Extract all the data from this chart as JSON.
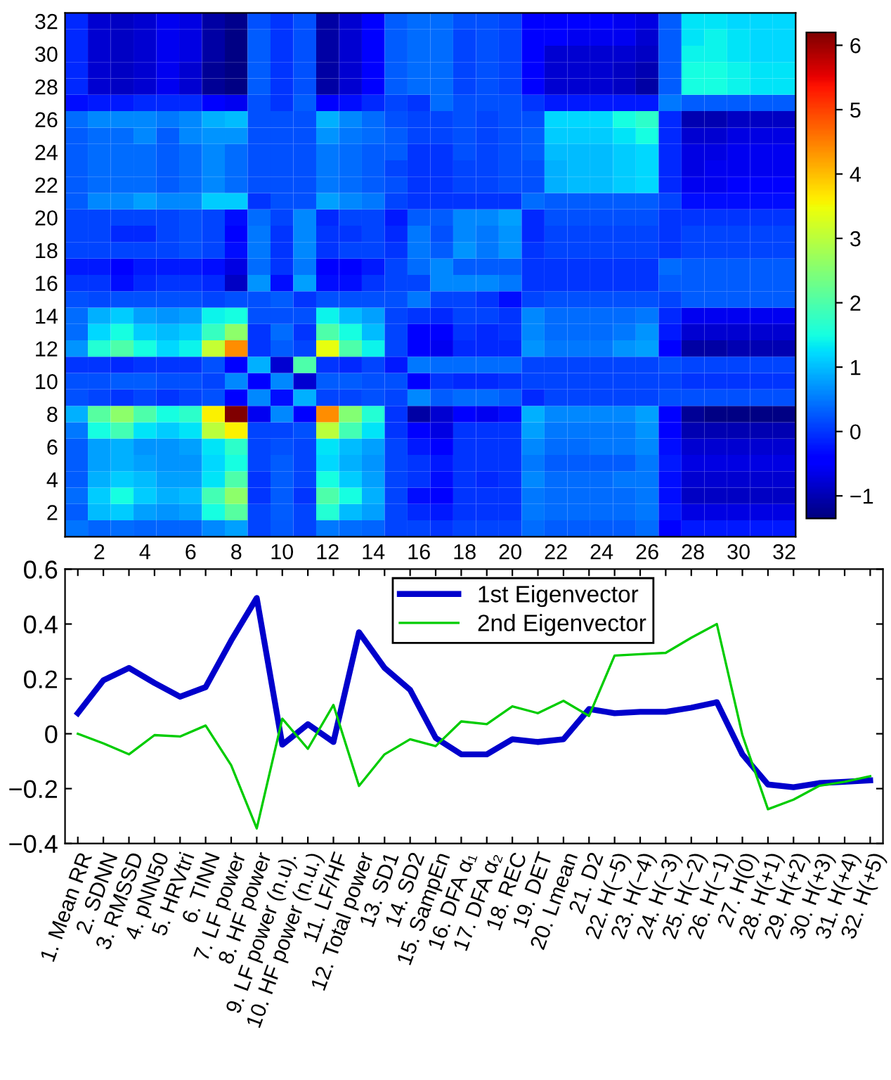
{
  "chart_data": [
    {
      "type": "heatmap",
      "categories": [
        null,
        "2",
        null,
        "4",
        null,
        "6",
        null,
        "8",
        null,
        "10",
        null,
        "12",
        null,
        "14",
        null,
        "16",
        null,
        "18",
        null,
        "20",
        null,
        "22",
        null,
        "24",
        null,
        "26",
        null,
        "28",
        null,
        "30",
        null,
        "32"
      ],
      "y_categories": [
        "32",
        null,
        "30",
        null,
        "28",
        null,
        "26",
        null,
        "24",
        null,
        "22",
        null,
        "20",
        null,
        "18",
        null,
        "16",
        null,
        "14",
        null,
        "12",
        null,
        "10",
        null,
        "8",
        null,
        "6",
        null,
        "4",
        null,
        "2",
        null
      ],
      "cells": [
        [
          -0.1,
          -0.8,
          -0.9,
          -0.8,
          -0.6,
          -0.7,
          -1.1,
          -1.25,
          0.2,
          0.0,
          0.2,
          -1.1,
          -0.8,
          -0.5,
          0.3,
          0.4,
          0.4,
          0.2,
          0.2,
          0.1,
          -0.4,
          -0.4,
          -0.4,
          -0.4,
          -0.6,
          -0.7,
          0.3,
          1.3,
          1.3,
          1.2,
          1.2,
          1.2
        ],
        [
          -0.1,
          -0.8,
          -0.9,
          -0.8,
          -0.6,
          -0.7,
          -1.1,
          -1.3,
          0.3,
          0.0,
          0.2,
          -1.1,
          -0.8,
          -0.5,
          0.3,
          0.4,
          0.4,
          0.1,
          0.2,
          0.1,
          -0.4,
          -0.5,
          -0.6,
          -0.6,
          -0.6,
          -0.8,
          0.3,
          1.3,
          1.4,
          1.3,
          1.2,
          1.2
        ],
        [
          -0.1,
          -0.8,
          -0.9,
          -0.8,
          -0.6,
          -0.7,
          -1.1,
          -1.3,
          0.3,
          0.0,
          0.2,
          -1.1,
          -0.8,
          -0.5,
          0.3,
          0.4,
          0.4,
          0.1,
          0.2,
          0.1,
          -0.4,
          -0.8,
          -0.8,
          -0.8,
          -0.8,
          -0.9,
          0.3,
          1.4,
          1.4,
          1.3,
          1.2,
          1.2
        ],
        [
          -0.1,
          -0.8,
          -0.9,
          -0.8,
          -0.6,
          -0.8,
          -1.2,
          -1.3,
          0.3,
          0.0,
          0.2,
          -1.1,
          -0.8,
          -0.5,
          0.3,
          0.4,
          0.4,
          0.1,
          0.2,
          0.1,
          -0.4,
          -0.8,
          -0.8,
          -0.8,
          -0.9,
          -1.0,
          0.3,
          1.5,
          1.5,
          1.4,
          1.3,
          1.3
        ],
        [
          -0.1,
          -0.8,
          -0.9,
          -0.8,
          -0.6,
          -0.8,
          -1.2,
          -1.3,
          0.3,
          0.0,
          0.2,
          -1.1,
          -0.8,
          -0.5,
          0.3,
          0.4,
          0.4,
          0.1,
          0.2,
          0.1,
          -0.4,
          -0.8,
          -0.8,
          -0.8,
          -0.9,
          -1.1,
          0.3,
          1.5,
          1.5,
          1.4,
          1.3,
          1.3
        ],
        [
          -0.3,
          -0.2,
          -0.2,
          -0.1,
          -0.1,
          -0.1,
          -0.4,
          -0.6,
          0.2,
          0.0,
          0.3,
          -0.5,
          -0.3,
          -0.1,
          0.1,
          0.0,
          0.4,
          0.2,
          0.2,
          0.2,
          0.0,
          -0.2,
          -0.2,
          -0.2,
          -0.2,
          -0.2,
          0.5,
          0.3,
          0.3,
          0.3,
          0.3,
          0.3
        ],
        [
          0.4,
          0.6,
          0.6,
          0.6,
          0.5,
          0.6,
          0.9,
          1.0,
          0.2,
          0.2,
          0.2,
          0.9,
          0.6,
          0.4,
          0.2,
          0.1,
          0.1,
          0.2,
          0.1,
          0.2,
          0.2,
          1.2,
          1.2,
          1.2,
          1.5,
          1.7,
          -0.1,
          -1.0,
          -1.0,
          -0.9,
          -0.9,
          -0.9
        ],
        [
          0.3,
          0.4,
          0.4,
          0.6,
          0.3,
          0.6,
          0.7,
          0.7,
          0.2,
          0.2,
          0.2,
          0.7,
          0.5,
          0.4,
          0.3,
          0.1,
          0.1,
          0.2,
          0.1,
          0.2,
          0.3,
          1.1,
          1.1,
          1.1,
          1.3,
          1.5,
          -0.1,
          -0.8,
          -0.8,
          -0.7,
          -0.7,
          -0.7
        ],
        [
          0.3,
          0.4,
          0.4,
          0.4,
          0.3,
          0.4,
          0.6,
          0.4,
          0.2,
          0.2,
          0.2,
          0.5,
          0.4,
          0.3,
          0.3,
          0.0,
          0.0,
          0.2,
          0.1,
          0.2,
          0.3,
          1.0,
          1.0,
          1.0,
          1.1,
          1.2,
          -0.1,
          -0.7,
          -0.7,
          -0.6,
          -0.6,
          -0.6
        ],
        [
          0.3,
          0.4,
          0.4,
          0.4,
          0.3,
          0.4,
          0.6,
          0.4,
          0.2,
          0.2,
          0.2,
          0.5,
          0.4,
          0.3,
          0.1,
          0.0,
          0.0,
          0.1,
          0.1,
          0.2,
          0.2,
          0.9,
          1.0,
          1.0,
          1.1,
          1.2,
          -0.1,
          -0.7,
          -0.6,
          -0.6,
          -0.6,
          -0.6
        ],
        [
          0.3,
          0.4,
          0.4,
          0.4,
          0.3,
          0.4,
          0.6,
          0.4,
          0.2,
          0.2,
          0.2,
          0.5,
          0.4,
          0.3,
          0.2,
          0.0,
          0.0,
          0.1,
          0.1,
          0.2,
          0.2,
          0.9,
          1.0,
          1.0,
          1.1,
          1.2,
          -0.1,
          -0.6,
          -0.6,
          -0.5,
          -0.5,
          -0.5
        ],
        [
          0.3,
          0.6,
          0.6,
          0.8,
          0.6,
          0.6,
          1.1,
          1.1,
          0.0,
          0.2,
          0.2,
          0.8,
          0.6,
          0.5,
          0.1,
          0.0,
          0.0,
          0.0,
          0.0,
          0.0,
          0.4,
          0.3,
          0.3,
          0.3,
          0.3,
          0.3,
          0.1,
          -0.3,
          -0.3,
          -0.3,
          -0.3,
          -0.3
        ],
        [
          0.1,
          0.1,
          0.1,
          0.1,
          0.1,
          0.2,
          0.1,
          -0.3,
          0.4,
          0.1,
          0.6,
          -0.1,
          0.1,
          0.1,
          -0.2,
          0.3,
          0.3,
          0.6,
          0.6,
          0.8,
          -0.1,
          0.2,
          0.2,
          0.2,
          0.2,
          0.2,
          0.0,
          0.0,
          0.0,
          0.0,
          0.0,
          0.0
        ],
        [
          0.1,
          0.1,
          -0.1,
          -0.1,
          0.1,
          0.2,
          0.1,
          -0.4,
          0.5,
          0.0,
          0.6,
          0.0,
          0.0,
          0.1,
          -0.1,
          0.5,
          0.2,
          0.6,
          0.5,
          0.7,
          -0.1,
          0.1,
          0.1,
          0.1,
          0.1,
          0.1,
          0.0,
          0.1,
          0.1,
          0.1,
          0.1,
          0.1
        ],
        [
          0.1,
          0.1,
          0.1,
          0.1,
          0.1,
          0.2,
          0.1,
          -0.3,
          0.5,
          0.0,
          0.6,
          0.0,
          0.1,
          0.1,
          0.0,
          0.5,
          0.3,
          0.7,
          0.5,
          0.7,
          0.0,
          0.1,
          0.1,
          0.1,
          0.1,
          0.1,
          0.0,
          0.1,
          0.1,
          0.1,
          0.1,
          0.1
        ],
        [
          -0.2,
          -0.2,
          -0.4,
          -0.2,
          -0.2,
          -0.2,
          -0.3,
          -0.7,
          0.4,
          0.0,
          0.5,
          -0.4,
          -0.4,
          -0.2,
          0.1,
          0.4,
          0.6,
          0.3,
          0.3,
          0.3,
          0.0,
          0.0,
          0.0,
          0.0,
          0.0,
          0.0,
          0.4,
          0.3,
          0.3,
          0.3,
          0.3,
          0.3
        ],
        [
          0.0,
          0.0,
          -0.3,
          -0.1,
          0.0,
          0.0,
          -0.1,
          -0.9,
          0.7,
          -0.3,
          0.8,
          -0.3,
          -0.3,
          0.0,
          0.1,
          0.1,
          0.6,
          0.6,
          0.6,
          0.5,
          0.0,
          0.0,
          0.0,
          0.0,
          0.0,
          0.0,
          0.3,
          0.3,
          0.3,
          0.3,
          0.3,
          0.3
        ],
        [
          0.2,
          0.15,
          0.2,
          0.2,
          0.2,
          0.2,
          0.1,
          0.2,
          0.2,
          0.3,
          0.0,
          0.2,
          0.2,
          0.2,
          0.2,
          0.5,
          0.1,
          0.1,
          0.0,
          -0.3,
          0.1,
          0.2,
          0.2,
          0.2,
          0.2,
          0.2,
          0.1,
          0.3,
          0.3,
          0.3,
          0.3,
          0.3
        ],
        [
          0.4,
          0.9,
          1.1,
          0.8,
          0.7,
          0.8,
          1.4,
          1.5,
          0.2,
          0.2,
          0.2,
          1.4,
          1.0,
          0.8,
          0.1,
          0.0,
          -0.1,
          0.1,
          0.1,
          0.0,
          0.6,
          0.4,
          0.4,
          0.4,
          0.4,
          0.5,
          -0.1,
          -0.6,
          -0.6,
          -0.6,
          -0.6,
          -0.6
        ],
        [
          0.4,
          1.2,
          1.5,
          1.1,
          1.0,
          1.1,
          1.8,
          2.6,
          0.0,
          0.4,
          0.0,
          2.0,
          1.5,
          1.0,
          0.1,
          -0.4,
          -0.4,
          0.0,
          -0.1,
          0.0,
          0.6,
          0.4,
          0.4,
          0.4,
          0.5,
          0.7,
          -0.2,
          -0.8,
          -0.8,
          -0.8,
          -0.8,
          -0.8
        ],
        [
          0.7,
          1.6,
          2.0,
          1.5,
          1.2,
          1.4,
          3.1,
          4.4,
          0.0,
          0.3,
          0.1,
          3.4,
          2.0,
          1.4,
          0.1,
          -0.4,
          -0.6,
          -0.1,
          -0.1,
          -0.1,
          0.7,
          0.5,
          0.5,
          0.5,
          0.7,
          0.8,
          -0.4,
          -1.1,
          -1.1,
          -1.0,
          -1.0,
          -1.0
        ],
        [
          0.0,
          0.0,
          -0.1,
          0.0,
          0.0,
          0.0,
          0.2,
          -0.4,
          0.9,
          -0.8,
          2.0,
          0.0,
          -0.1,
          0.1,
          -0.2,
          0.5,
          0.4,
          0.4,
          0.4,
          0.4,
          0.1,
          0.1,
          0.1,
          0.1,
          0.1,
          0.1,
          0.2,
          0.1,
          0.1,
          0.1,
          0.1,
          0.1
        ],
        [
          0.2,
          0.2,
          0.3,
          0.3,
          0.2,
          0.2,
          0.1,
          0.6,
          -0.4,
          0.6,
          -0.8,
          0.3,
          0.3,
          0.2,
          0.2,
          -0.4,
          0.0,
          -0.1,
          -0.1,
          0.0,
          0.1,
          0.1,
          0.1,
          0.1,
          0.1,
          0.1,
          0.1,
          0.0,
          0.0,
          0.0,
          0.0,
          0.0
        ],
        [
          0.2,
          0.1,
          0.0,
          0.1,
          0.0,
          0.1,
          0.2,
          -0.4,
          0.6,
          -0.3,
          0.9,
          0.1,
          0.1,
          0.2,
          0.1,
          0.6,
          0.3,
          0.4,
          0.4,
          0.3,
          -0.1,
          0.1,
          0.1,
          0.1,
          0.1,
          0.1,
          0.2,
          0.2,
          0.2,
          0.2,
          0.2,
          0.2
        ],
        [
          0.9,
          2.1,
          2.6,
          2.0,
          1.5,
          1.7,
          3.6,
          6.2,
          -0.6,
          0.6,
          -0.4,
          4.4,
          2.5,
          1.6,
          0.0,
          -1.1,
          -0.8,
          -0.4,
          -0.6,
          -0.3,
          0.9,
          0.6,
          0.6,
          0.6,
          0.6,
          0.8,
          -0.5,
          -1.2,
          -1.3,
          -1.3,
          -1.3,
          -1.3
        ],
        [
          0.5,
          1.5,
          1.9,
          1.3,
          1.1,
          1.3,
          3.0,
          3.6,
          0.1,
          0.1,
          0.2,
          3.0,
          1.9,
          1.3,
          0.0,
          -0.4,
          -0.7,
          0.0,
          0.0,
          0.0,
          0.8,
          0.5,
          0.5,
          0.5,
          0.5,
          0.7,
          -0.4,
          -1.0,
          -1.0,
          -1.0,
          -1.0,
          -1.0
        ],
        [
          0.3,
          0.8,
          0.9,
          0.7,
          0.7,
          0.8,
          1.3,
          1.7,
          0.1,
          0.2,
          0.1,
          1.3,
          1.0,
          0.8,
          0.1,
          -0.2,
          -0.4,
          0.0,
          0.0,
          0.0,
          0.6,
          0.4,
          0.4,
          0.5,
          0.5,
          0.6,
          -0.3,
          -0.8,
          -0.8,
          -0.8,
          -0.8,
          -0.8
        ],
        [
          0.3,
          0.8,
          0.9,
          0.8,
          0.7,
          0.7,
          1.2,
          1.5,
          0.1,
          0.3,
          0.1,
          1.2,
          0.9,
          0.7,
          0.1,
          0.0,
          -0.2,
          0.0,
          0.0,
          0.0,
          0.5,
          0.3,
          0.3,
          0.3,
          0.3,
          0.5,
          -0.2,
          -0.7,
          -0.7,
          -0.7,
          -0.7,
          -0.7
        ],
        [
          0.3,
          0.9,
          1.1,
          1.0,
          0.8,
          0.8,
          1.3,
          2.0,
          0.0,
          0.3,
          0.1,
          1.5,
          1.1,
          0.8,
          0.1,
          0.0,
          -0.3,
          0.0,
          -0.1,
          0.0,
          0.6,
          0.4,
          0.4,
          0.4,
          0.5,
          0.5,
          -0.3,
          -0.8,
          -0.8,
          -0.8,
          -0.8,
          -0.8
        ],
        [
          0.4,
          1.1,
          1.5,
          1.1,
          0.9,
          1.0,
          1.9,
          2.6,
          0.0,
          0.3,
          0.0,
          2.0,
          1.5,
          0.9,
          0.1,
          -0.3,
          -0.4,
          0.0,
          0.0,
          0.0,
          0.5,
          0.4,
          0.4,
          0.4,
          0.4,
          0.5,
          -0.3,
          -0.9,
          -0.9,
          -0.9,
          -0.9,
          -0.9
        ],
        [
          0.3,
          1.0,
          1.1,
          0.8,
          0.7,
          0.8,
          1.5,
          2.1,
          0.1,
          0.3,
          0.1,
          1.6,
          1.0,
          0.8,
          0.1,
          -0.1,
          -0.2,
          0.0,
          0.0,
          0.0,
          0.5,
          0.4,
          0.4,
          0.4,
          0.4,
          0.5,
          -0.2,
          -0.7,
          -0.7,
          -0.7,
          -0.7,
          -0.7
        ],
        [
          0.45,
          0.35,
          0.4,
          0.35,
          0.35,
          0.35,
          0.6,
          0.8,
          0.1,
          0.25,
          0.1,
          0.5,
          0.4,
          0.35,
          0.1,
          0.1,
          0.0,
          0.1,
          0.1,
          0.1,
          0.4,
          0.3,
          0.3,
          0.3,
          0.3,
          0.4,
          -0.4,
          -0.2,
          -0.2,
          -0.2,
          -0.2,
          -0.2
        ]
      ],
      "clim": [
        -1.35,
        6.2
      ],
      "cticks": [
        {
          "value": -1,
          "label": "−1"
        },
        0,
        1,
        2,
        3,
        4,
        5,
        6
      ]
    },
    {
      "type": "line",
      "categories": [
        "1. Mean RR",
        "2. SDNN",
        "3. RMSSD",
        "4. pNN50",
        "5. HRVtri",
        "6. TINN",
        "7. LF power",
        "8. HF power",
        "9. LF power (n.u).",
        "10. HF power (n.u.)",
        "11. LF/HF",
        "12. Total power",
        "13. SD1",
        "14. SD2",
        "15. SampEn",
        "16. DFA α₁",
        "17. DFA α₂",
        "18. REC",
        "19. DET",
        "20. Lmean",
        "21. D2",
        "22. H(−5)",
        "23. H(−4)",
        "24. H(−3)",
        "25. H(−2)",
        "26. H(−1)",
        "27. H(0)",
        "28. H(+1)",
        "29. H(+2)",
        "30. H(+3)",
        "31. H(+4)",
        "32. H(+5)"
      ],
      "series": [
        {
          "name": "1st Eigenvector",
          "color": "#0000cc",
          "values": [
            0.075,
            0.195,
            0.24,
            0.185,
            0.135,
            0.17,
            0.34,
            0.495,
            -0.04,
            0.035,
            -0.03,
            0.37,
            0.24,
            0.16,
            -0.015,
            -0.075,
            -0.075,
            -0.02,
            -0.03,
            -0.02,
            0.09,
            0.075,
            0.08,
            0.08,
            0.095,
            0.115,
            -0.075,
            -0.185,
            -0.195,
            -0.18,
            -0.175,
            -0.17
          ]
        },
        {
          "name": "2nd Eigenvector",
          "color": "#00cc00",
          "values": [
            0.0,
            -0.035,
            -0.075,
            -0.005,
            -0.01,
            0.03,
            -0.115,
            -0.345,
            0.055,
            -0.055,
            0.105,
            -0.19,
            -0.075,
            -0.02,
            -0.045,
            0.045,
            0.035,
            0.1,
            0.075,
            0.12,
            0.065,
            0.285,
            0.29,
            0.295,
            0.35,
            0.4,
            -0.005,
            -0.275,
            -0.24,
            -0.19,
            -0.175,
            -0.155
          ]
        }
      ],
      "ylim": [
        -0.4,
        0.6
      ],
      "yticks": [
        {
          "value": -0.4,
          "label": "−0.4"
        },
        {
          "value": -0.2,
          "label": "−0.2"
        },
        0,
        0.2,
        0.4,
        0.6
      ],
      "legend": "top",
      "grid": false,
      "marker": "none",
      "line_style": "solid"
    }
  ]
}
